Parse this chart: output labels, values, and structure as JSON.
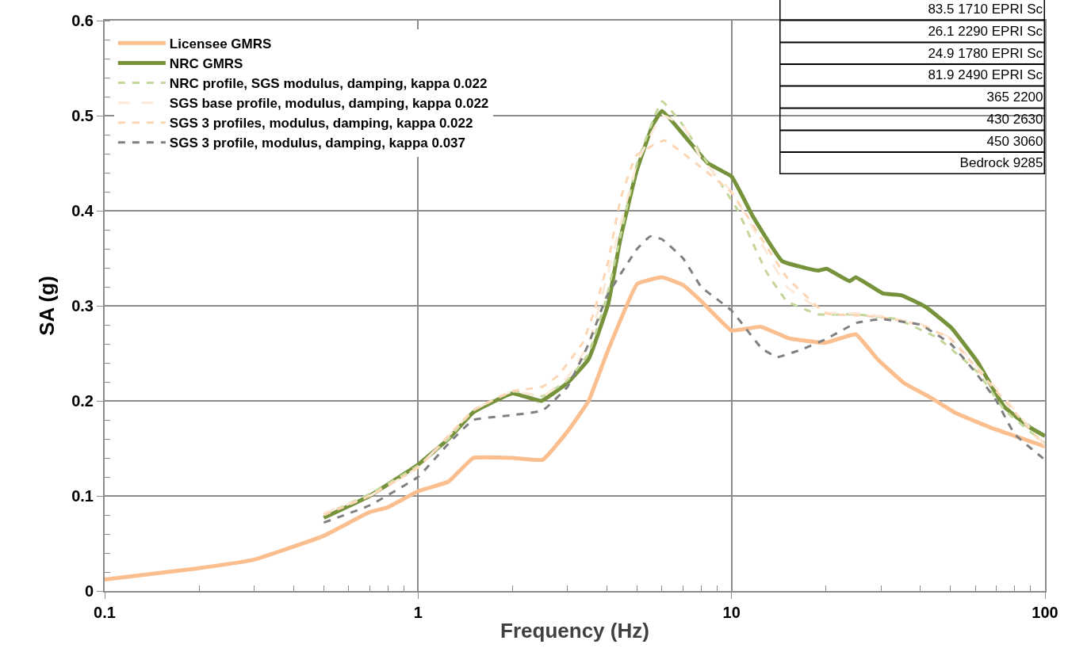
{
  "chart_data": {
    "type": "line",
    "xlabel": "Frequency (Hz)",
    "ylabel": "SA (g)",
    "log": "x",
    "xlim": [
      0.1,
      100
    ],
    "xticks": [
      0.1,
      1,
      10,
      100
    ],
    "ylim": [
      0,
      0.6
    ],
    "yticks": [
      0,
      0.1,
      0.2,
      0.3,
      0.4,
      0.5,
      0.6
    ],
    "grid": true,
    "legend": "top left",
    "marker": "none",
    "series": [
      {
        "name": "Licensee GMRS",
        "color": "#fbbf8f",
        "line_style": "solid",
        "x": [
          0.1,
          0.2,
          0.3,
          0.5,
          0.7,
          0.8,
          1.0,
          1.25,
          1.5,
          2,
          2.5,
          3,
          3.5,
          4,
          5,
          6,
          7,
          8,
          10,
          12.4,
          15.2,
          19.8,
          24.9,
          29.2,
          35.4,
          43.4,
          52,
          67,
          100
        ],
        "values": [
          0.012,
          0.024,
          0.033,
          0.058,
          0.083,
          0.088,
          0.105,
          0.115,
          0.14,
          0.14,
          0.138,
          0.168,
          0.2,
          0.25,
          0.323,
          0.33,
          0.322,
          0.305,
          0.274,
          0.278,
          0.266,
          0.261,
          0.27,
          0.244,
          0.219,
          0.203,
          0.187,
          0.172,
          0.152
        ]
      },
      {
        "name": "NRC GMRS",
        "color": "#76933c",
        "line_style": "solid",
        "x": [
          0.5,
          0.7,
          1.0,
          1.25,
          1.5,
          2.0,
          2.47,
          3.0,
          3.5,
          4.04,
          4.43,
          4.97,
          5.6,
          6.0,
          7.36,
          8.4,
          10,
          11.7,
          14.5,
          18.9,
          20.1,
          23.8,
          24.9,
          30.4,
          34.9,
          41.5,
          50.2,
          60.9,
          74,
          89.6,
          100
        ],
        "values": [
          0.077,
          0.1,
          0.133,
          0.16,
          0.188,
          0.208,
          0.2,
          0.219,
          0.244,
          0.302,
          0.372,
          0.441,
          0.49,
          0.505,
          0.472,
          0.45,
          0.436,
          0.394,
          0.347,
          0.337,
          0.339,
          0.326,
          0.33,
          0.313,
          0.311,
          0.299,
          0.277,
          0.241,
          0.194,
          0.172,
          0.163
        ]
      },
      {
        "name": "NRC profile, SGS modulus, damping, kappa 0.022",
        "color": "#c4d79b",
        "line_style": "dashed",
        "x": [
          0.5,
          0.7,
          1.0,
          1.25,
          1.5,
          2.0,
          2.5,
          3.0,
          3.5,
          4.0,
          5.0,
          6.0,
          7.0,
          8.0,
          10.4,
          12.9,
          15,
          18.9,
          24.9,
          33.6,
          45.5,
          61,
          74,
          100
        ],
        "values": [
          0.08,
          0.102,
          0.132,
          0.16,
          0.19,
          0.21,
          0.205,
          0.222,
          0.25,
          0.31,
          0.45,
          0.515,
          0.49,
          0.46,
          0.402,
          0.336,
          0.305,
          0.291,
          0.291,
          0.286,
          0.266,
          0.23,
          0.191,
          0.155
        ]
      },
      {
        "name": "SGS base profile, modulus, damping, kappa 0.022",
        "color": "#fde9d9",
        "line_style": "longdash",
        "x": [
          0.5,
          0.7,
          1.0,
          1.5,
          2.0,
          2.5,
          3.0,
          3.5,
          4.0,
          5.0,
          6.0,
          7.0,
          8.0,
          10,
          12.5,
          15,
          20,
          25,
          30,
          40,
          50,
          70,
          100
        ],
        "values": [
          0.082,
          0.1,
          0.13,
          0.19,
          0.21,
          0.205,
          0.225,
          0.26,
          0.33,
          0.45,
          0.5,
          0.49,
          0.455,
          0.42,
          0.365,
          0.32,
          0.293,
          0.292,
          0.289,
          0.281,
          0.266,
          0.213,
          0.153
        ]
      },
      {
        "name": "SGS 3 profiles, modulus, damping, kappa 0.022",
        "color": "#fcd5b4",
        "line_style": "dashed",
        "x": [
          0.5,
          0.7,
          1.0,
          1.5,
          2.0,
          2.5,
          2.8,
          3.35,
          3.67,
          4.04,
          4.43,
          4.97,
          6.1,
          7.9,
          10,
          12.5,
          15,
          20,
          25,
          30,
          40,
          50,
          70,
          100
        ],
        "values": [
          0.08,
          0.1,
          0.13,
          0.19,
          0.21,
          0.215,
          0.227,
          0.261,
          0.297,
          0.347,
          0.413,
          0.458,
          0.474,
          0.447,
          0.419,
          0.37,
          0.33,
          0.292,
          0.29,
          0.288,
          0.28,
          0.265,
          0.21,
          0.152
        ]
      },
      {
        "name": "SGS 3 profile, modulus, damping, kappa 0.037",
        "color": "#808080",
        "line_style": "dashed",
        "x": [
          0.5,
          0.7,
          1.0,
          1.25,
          1.5,
          2.0,
          2.5,
          3.0,
          3.5,
          4.0,
          5.0,
          5.5,
          6.0,
          7.0,
          8.0,
          10,
          12.5,
          14,
          17,
          20,
          25,
          30,
          40,
          50,
          60,
          70,
          80,
          100
        ],
        "values": [
          0.072,
          0.09,
          0.12,
          0.155,
          0.18,
          0.185,
          0.19,
          0.215,
          0.26,
          0.31,
          0.36,
          0.373,
          0.37,
          0.35,
          0.32,
          0.295,
          0.255,
          0.246,
          0.255,
          0.265,
          0.282,
          0.286,
          0.28,
          0.26,
          0.23,
          0.2,
          0.165,
          0.138
        ]
      }
    ],
    "annotations": [
      "83.5 1710 EPRI Sc",
      "26.1 2290 EPRI Sc",
      "24.9 1780 EPRI Sc",
      "81.9 2490 EPRI Sc",
      "365 2200",
      "430 2630",
      "450 3060",
      "Bedrock 9285"
    ]
  }
}
